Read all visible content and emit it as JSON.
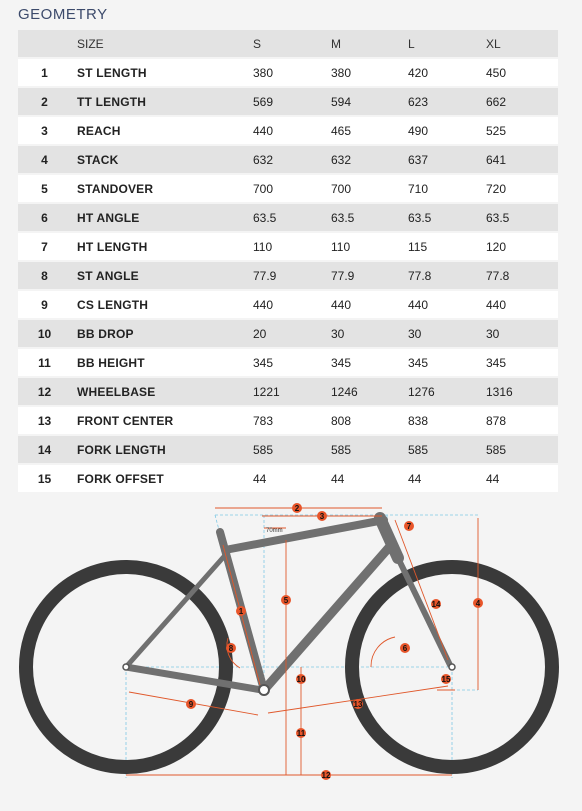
{
  "title": "GEOMETRY",
  "table": {
    "headers": [
      "",
      "SIZE",
      "S",
      "M",
      "L",
      "XL"
    ],
    "rows": [
      {
        "num": "1",
        "label": "ST LENGTH",
        "values": [
          "380",
          "380",
          "420",
          "450"
        ]
      },
      {
        "num": "2",
        "label": "TT LENGTH",
        "values": [
          "569",
          "594",
          "623",
          "662"
        ]
      },
      {
        "num": "3",
        "label": "REACH",
        "values": [
          "440",
          "465",
          "490",
          "525"
        ]
      },
      {
        "num": "4",
        "label": "STACK",
        "values": [
          "632",
          "632",
          "637",
          "641"
        ]
      },
      {
        "num": "5",
        "label": "STANDOVER",
        "values": [
          "700",
          "700",
          "710",
          "720"
        ]
      },
      {
        "num": "6",
        "label": "HT ANGLE",
        "values": [
          "63.5",
          "63.5",
          "63.5",
          "63.5"
        ]
      },
      {
        "num": "7",
        "label": "HT LENGTH",
        "values": [
          "110",
          "110",
          "115",
          "120"
        ]
      },
      {
        "num": "8",
        "label": "ST ANGLE",
        "values": [
          "77.9",
          "77.9",
          "77.8",
          "77.8"
        ]
      },
      {
        "num": "9",
        "label": "CS LENGTH",
        "values": [
          "440",
          "440",
          "440",
          "440"
        ]
      },
      {
        "num": "10",
        "label": "BB DROP",
        "values": [
          "20",
          "30",
          "30",
          "30"
        ]
      },
      {
        "num": "11",
        "label": "BB HEIGHT",
        "values": [
          "345",
          "345",
          "345",
          "345"
        ]
      },
      {
        "num": "12",
        "label": "WHEELBASE",
        "values": [
          "1221",
          "1246",
          "1276",
          "1316"
        ]
      },
      {
        "num": "13",
        "label": "FRONT CENTER",
        "values": [
          "783",
          "808",
          "838",
          "878"
        ]
      },
      {
        "num": "14",
        "label": "FORK LENGTH",
        "values": [
          "585",
          "585",
          "585",
          "585"
        ]
      },
      {
        "num": "15",
        "label": "FORK OFFSET",
        "values": [
          "44",
          "44",
          "44",
          "44"
        ]
      }
    ]
  },
  "diagram": {
    "offset_label": "70mm",
    "callouts": [
      "1",
      "2",
      "3",
      "4",
      "5",
      "6",
      "7",
      "8",
      "9",
      "10",
      "11",
      "12",
      "13",
      "14",
      "15"
    ],
    "colors": {
      "tire": "#3a3a3a",
      "frame": "#707070",
      "dimension": "#e0582b",
      "guide": "#7fc8e4",
      "callout": "#e8552a"
    }
  }
}
